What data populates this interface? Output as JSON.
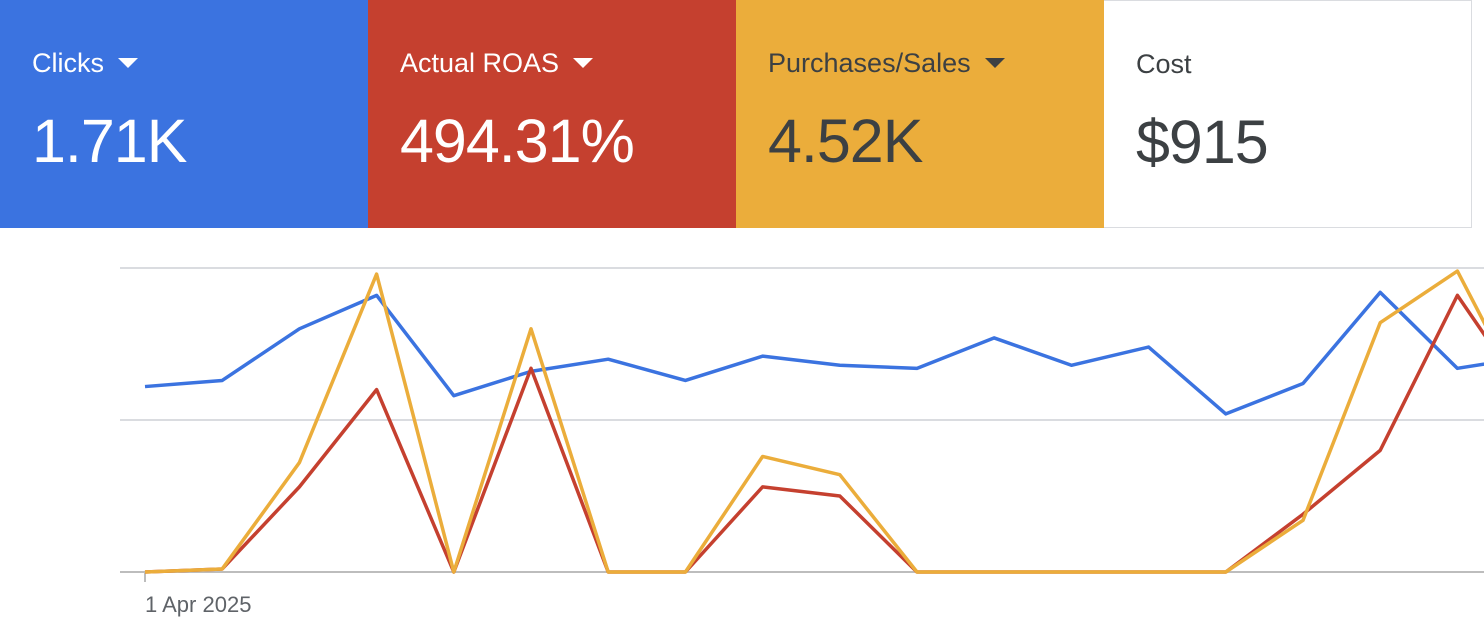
{
  "scorecards": [
    {
      "label": "Clicks",
      "value": "1.71K",
      "has_dropdown": true,
      "background": "#3b73e0",
      "color": "#ffffff"
    },
    {
      "label": "Actual ROAS",
      "value": "494.31%",
      "has_dropdown": true,
      "background": "#c5402f",
      "color": "#ffffff"
    },
    {
      "label": "Purchases/Sales",
      "value": "4.52K",
      "has_dropdown": true,
      "background": "#ebad3b",
      "color": "#3c4043"
    },
    {
      "label": "Cost",
      "value": "$915",
      "has_dropdown": false,
      "background": "#ffffff",
      "color": "#3c4043"
    }
  ],
  "chart_data": {
    "type": "line",
    "x_tick_labels": [
      "1 Apr 2025"
    ],
    "grid": true,
    "series_scale": "normalized",
    "series": [
      {
        "color": "#3b73e0",
        "values": [
          0.61,
          0.63,
          0.8,
          0.91,
          0.58,
          0.66,
          0.7,
          0.63,
          0.71,
          0.68,
          0.67,
          0.77,
          0.68,
          0.74,
          0.52,
          0.62,
          0.92,
          0.67,
          0.71
        ]
      },
      {
        "color": "#c5402f",
        "values": [
          0.0,
          0.01,
          0.28,
          0.6,
          0.0,
          0.67,
          0.0,
          0.0,
          0.28,
          0.25,
          0.0,
          0.0,
          0.0,
          0.0,
          0.0,
          0.19,
          0.4,
          0.91,
          0.54
        ]
      },
      {
        "color": "#ebad3b",
        "values": [
          0.0,
          0.01,
          0.36,
          0.98,
          0.0,
          0.8,
          0.0,
          0.0,
          0.38,
          0.32,
          0.0,
          0.0,
          0.0,
          0.0,
          0.0,
          0.17,
          0.82,
          0.99,
          0.5
        ]
      }
    ]
  }
}
